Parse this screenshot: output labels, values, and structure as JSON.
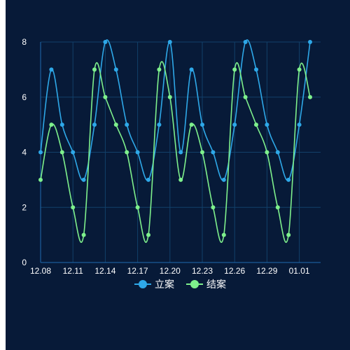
{
  "colors": {
    "background": "#071a38",
    "grid": "#12406a",
    "axis": "#1f6bb0",
    "label": "#ffffff"
  },
  "chart_data": {
    "type": "line",
    "smooth": true,
    "x": [
      "12.08",
      "12.09",
      "12.10",
      "12.11",
      "12.12",
      "12.13",
      "12.14",
      "12.15",
      "12.16",
      "12.17",
      "12.18",
      "12.19",
      "12.20",
      "12.21",
      "12.22",
      "12.23",
      "12.24",
      "12.25",
      "12.26",
      "12.27",
      "12.28",
      "12.29",
      "12.30",
      "12.31",
      "01.01",
      "01.02"
    ],
    "x_tick_labels": [
      "12.08",
      "12.11",
      "12.14",
      "12.17",
      "12.20",
      "12.23",
      "12.26",
      "12.29",
      "01.01"
    ],
    "y_ticks": [
      0,
      2,
      4,
      6,
      8
    ],
    "ylim": [
      0,
      8
    ],
    "grid": true,
    "legend_position": "bottom",
    "series": [
      {
        "name": "立案",
        "color": "#2ea8e8",
        "values": [
          4,
          7,
          5,
          4,
          3,
          5,
          8,
          7,
          5,
          4,
          3,
          5,
          8,
          4,
          7,
          5,
          4,
          3,
          5,
          8,
          7,
          5,
          4,
          3,
          5,
          8
        ]
      },
      {
        "name": "结案",
        "color": "#7ef08c",
        "values": [
          3,
          5,
          4,
          2,
          1,
          7,
          6,
          5,
          4,
          2,
          1,
          7,
          6,
          3,
          5,
          4,
          2,
          1,
          7,
          6,
          5,
          4,
          2,
          1,
          7,
          6
        ]
      }
    ]
  }
}
